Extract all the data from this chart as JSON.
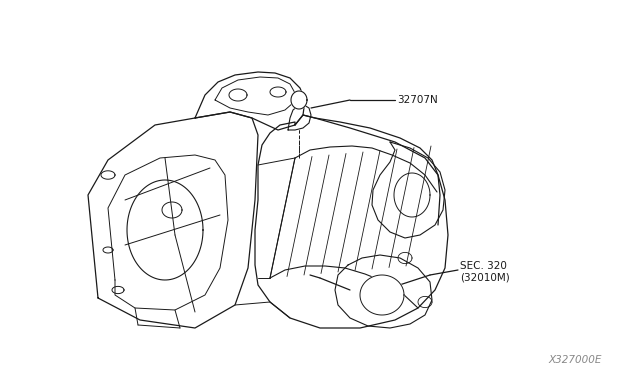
{
  "bg_color": "#ffffff",
  "line_color": "#1a1a1a",
  "label_32707N": "32707N",
  "label_sec320": "SEC. 320",
  "label_sec320b": "(32010M)",
  "watermark": "X327000E",
  "fig_width": 6.4,
  "fig_height": 3.72,
  "dpi": 100
}
